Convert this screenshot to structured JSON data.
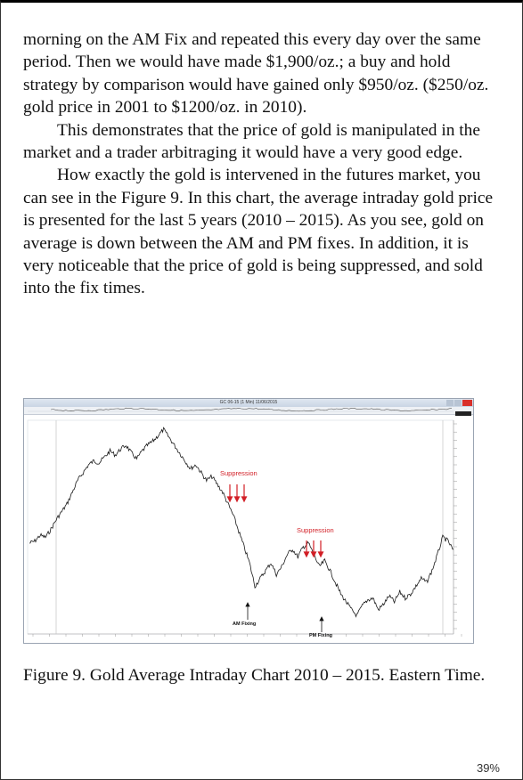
{
  "paragraphs": [
    "morning on the AM Fix and repeated this every day over the same period. Then we would have made $1,900/oz.; a buy and hold strategy by comparison would have gained only $950/oz. ($250/oz. gold price in 2001 to $1200/oz. in 2010).",
    "This demonstrates that the price of gold is manipulated in the market and a trader arbitraging it would have a very good edge.",
    "How exactly the gold is intervened in the futures market, you can see in the Figure 9. In this chart, the average intraday gold price is presented for the last 5 years (2010 – 2015). As you see, gold on average is down between the AM and PM fixes. In addition, it is very noticeable that the price of gold is being suppressed, and sold into the fix times."
  ],
  "figure": {
    "window_title": "GC 06-15 (1 Min)  11/06/2015",
    "annotations": {
      "suppression_1": "Suppression",
      "suppression_2": "Suppression",
      "am_fixing": "AM Fixing",
      "pm_fixing": "PM Fixing"
    },
    "colors": {
      "annotation_red": "#d21f26",
      "price_line": "#1a1a1a"
    }
  },
  "chart_data": {
    "type": "line",
    "title": "",
    "series": [
      {
        "values": [
          40,
          41,
          44,
          43,
          47,
          52,
          56,
          60,
          66,
          72,
          76,
          80,
          82,
          81,
          84,
          87,
          85,
          88,
          90,
          86,
          83,
          87,
          90,
          92,
          95,
          98,
          94,
          90,
          86,
          82,
          78,
          80,
          76,
          72,
          74,
          70,
          66,
          60,
          54,
          46,
          38,
          30,
          18,
          22,
          26,
          30,
          24,
          28,
          34,
          37,
          33,
          38,
          40,
          34,
          28,
          31,
          26,
          20,
          14,
          10,
          6,
          3,
          8,
          11,
          12,
          6,
          9,
          13,
          10,
          15,
          12,
          14,
          18,
          22,
          20,
          26,
          34,
          43,
          41,
          36
        ]
      }
    ]
  },
  "caption": "Figure 9. Gold Average Intraday Chart 2010 – 2015. Eastern Time.",
  "progress": "39%"
}
